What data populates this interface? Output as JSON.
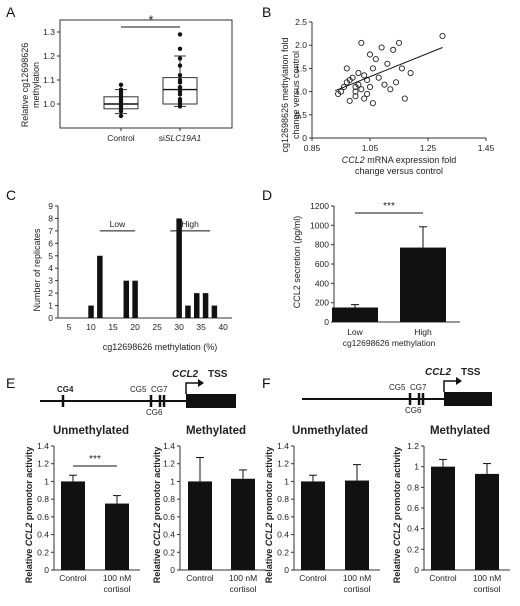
{
  "panels": {
    "A": {
      "label": "A",
      "ylabel": "Relative cg12698626\nmethylation",
      "categories": [
        "Control",
        "siSLC19A1"
      ],
      "significance": "*"
    },
    "B": {
      "label": "B",
      "ylabel_line1": "cg12698626 methylation fold",
      "ylabel_line2": "change versus control",
      "xlabel_line1": "CCL2 mRNA expression fold",
      "xlabel_line2": "change versus control"
    },
    "C": {
      "label": "C",
      "ylabel": "Number of replicates",
      "xlabel": "cg12698626 methylation (%)",
      "group_low": "Low",
      "group_high": "High"
    },
    "D": {
      "label": "D",
      "ylabel": "CCL2  secretion (pg/ml)",
      "categories": [
        "Low",
        "High"
      ],
      "xlabel": "cg12698626 methylation",
      "significance": "***"
    },
    "E": {
      "label": "E",
      "gene": "CCL2",
      "tss": "TSS",
      "sites": [
        "CG4",
        "CG5",
        "CG7",
        "CG6"
      ],
      "left_title": "Unmethylated",
      "right_title": "Methylated",
      "ylabel": "Relative CCL2 promotor activity",
      "categories": [
        "Control",
        "100 nM",
        "cortisol"
      ],
      "significance": "***"
    },
    "F": {
      "label": "F",
      "gene": "CCL2",
      "tss": "TSS",
      "sites": [
        "CG5",
        "CG7",
        "CG6"
      ],
      "left_title": "Unmethylated",
      "right_title": "Methylated",
      "ylabel": "Relative CCL2 promotor activity",
      "categories": [
        "Control",
        "100 nM",
        "cortisol"
      ]
    }
  },
  "chart_data": [
    {
      "panel": "A",
      "type": "box",
      "categories": [
        "Control",
        "siSLC19A1"
      ],
      "ylim": [
        0.9,
        1.35
      ],
      "yticks": [
        1.0,
        1.1,
        1.2,
        1.3
      ],
      "boxes": [
        {
          "q1": 0.98,
          "median": 1.0,
          "q3": 1.03,
          "whisker_low": 0.96,
          "whisker_high": 1.06
        },
        {
          "q1": 1.0,
          "median": 1.06,
          "q3": 1.11,
          "whisker_low": 0.99,
          "whisker_high": 1.2
        }
      ],
      "points": [
        [
          0.95,
          0.97,
          0.98,
          0.99,
          0.99,
          1.0,
          1.0,
          1.01,
          1.02,
          1.03,
          1.04,
          1.05,
          1.06,
          1.08
        ],
        [
          0.99,
          1.0,
          1.01,
          1.02,
          1.04,
          1.05,
          1.06,
          1.07,
          1.09,
          1.1,
          1.12,
          1.16,
          1.19,
          1.23,
          1.29
        ]
      ]
    },
    {
      "panel": "B",
      "type": "scatter",
      "xlim": [
        0.85,
        1.45
      ],
      "ylim": [
        0,
        2.5
      ],
      "xticks": [
        0.85,
        1.05,
        1.25,
        1.45
      ],
      "yticks": [
        0,
        0.5,
        1.0,
        1.5,
        2.0,
        2.5
      ],
      "points": [
        [
          0.94,
          0.95
        ],
        [
          0.95,
          1.0
        ],
        [
          0.96,
          1.1
        ],
        [
          0.97,
          1.2
        ],
        [
          0.97,
          1.5
        ],
        [
          0.98,
          0.8
        ],
        [
          0.98,
          1.25
        ],
        [
          0.99,
          1.3
        ],
        [
          1.0,
          0.9
        ],
        [
          1.0,
          1.1
        ],
        [
          1.0,
          1.0
        ],
        [
          1.01,
          1.4
        ],
        [
          1.01,
          1.15
        ],
        [
          1.02,
          2.05
        ],
        [
          1.02,
          1.05
        ],
        [
          1.03,
          0.85
        ],
        [
          1.03,
          1.35
        ],
        [
          1.04,
          1.25
        ],
        [
          1.04,
          0.95
        ],
        [
          1.05,
          1.8
        ],
        [
          1.05,
          1.1
        ],
        [
          1.06,
          1.5
        ],
        [
          1.06,
          0.75
        ],
        [
          1.07,
          1.7
        ],
        [
          1.08,
          1.3
        ],
        [
          1.09,
          1.95
        ],
        [
          1.1,
          1.15
        ],
        [
          1.11,
          1.6
        ],
        [
          1.12,
          1.05
        ],
        [
          1.13,
          1.9
        ],
        [
          1.14,
          1.2
        ],
        [
          1.15,
          2.05
        ],
        [
          1.16,
          1.5
        ],
        [
          1.17,
          0.85
        ],
        [
          1.19,
          1.4
        ],
        [
          1.3,
          2.2
        ]
      ],
      "trendline": [
        [
          0.93,
          1.02
        ],
        [
          1.3,
          1.95
        ]
      ]
    },
    {
      "panel": "C",
      "type": "bar",
      "xlim": [
        2.5,
        42
      ],
      "ylim": [
        0,
        9
      ],
      "xticks": [
        5,
        10,
        15,
        20,
        25,
        30,
        35,
        40
      ],
      "yticks": [
        0,
        1,
        2,
        3,
        4,
        5,
        6,
        7,
        8,
        9
      ],
      "x": [
        10,
        12,
        18,
        20,
        30,
        32,
        34,
        36,
        38
      ],
      "values": [
        1,
        5,
        3,
        3,
        8,
        1,
        2,
        2,
        1
      ],
      "group_lines": [
        {
          "name": "Low",
          "from": 12,
          "to": 20,
          "y": 7
        },
        {
          "name": "High",
          "from": 28,
          "to": 37,
          "y": 7
        }
      ]
    },
    {
      "panel": "D",
      "type": "bar",
      "categories": [
        "Low",
        "High"
      ],
      "values": [
        150,
        770
      ],
      "errors": [
        30,
        215
      ],
      "ylim": [
        0,
        1200
      ],
      "yticks": [
        0,
        200,
        400,
        600,
        800,
        1000,
        1200
      ]
    },
    {
      "panel": "E-left",
      "type": "bar",
      "categories": [
        "Control",
        "100 nM cortisol"
      ],
      "values": [
        1.0,
        0.75
      ],
      "errors": [
        0.07,
        0.09
      ],
      "ylim": [
        0,
        1.4
      ],
      "yticks": [
        0,
        0.2,
        0.4,
        0.6,
        0.8,
        1,
        1.2,
        1.4
      ]
    },
    {
      "panel": "E-right",
      "type": "bar",
      "categories": [
        "Control",
        "100 nM cortisol"
      ],
      "values": [
        1.0,
        1.03
      ],
      "errors": [
        0.27,
        0.1
      ],
      "ylim": [
        0,
        1.4
      ],
      "yticks": [
        0,
        0.2,
        0.4,
        0.6,
        0.8,
        1,
        1.2,
        1.4
      ]
    },
    {
      "panel": "F-left",
      "type": "bar",
      "categories": [
        "Control",
        "100 nM cortisol"
      ],
      "values": [
        1.0,
        1.01
      ],
      "errors": [
        0.07,
        0.18
      ],
      "ylim": [
        0,
        1.4
      ],
      "yticks": [
        0,
        0.2,
        0.4,
        0.6,
        0.8,
        1,
        1.2,
        1.4
      ]
    },
    {
      "panel": "F-right",
      "type": "bar",
      "categories": [
        "Control",
        "100 nM cortisol"
      ],
      "values": [
        1.0,
        0.93
      ],
      "errors": [
        0.07,
        0.1
      ],
      "ylim": [
        0,
        1.2
      ],
      "yticks": [
        0,
        0.2,
        0.4,
        0.6,
        0.8,
        1,
        1.2
      ]
    }
  ]
}
